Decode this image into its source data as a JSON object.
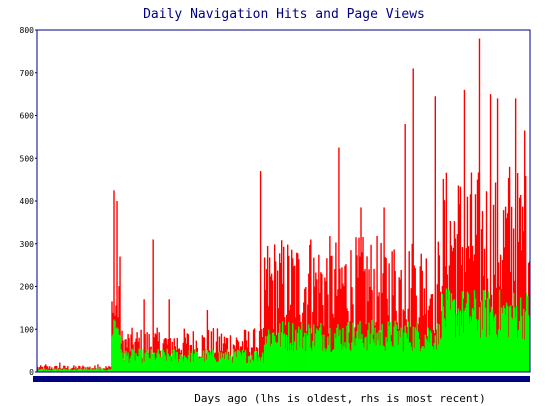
{
  "chart_data": {
    "type": "area",
    "title": "Daily Navigation Hits and Page Views",
    "xlabel": "Days ago (lhs is oldest, rhs is most recent)",
    "ylabel": "",
    "ylim": [
      0,
      800
    ],
    "yticks": [
      "0",
      "100",
      "200",
      "300",
      "400",
      "500",
      "600",
      "700",
      "800"
    ],
    "grid": false,
    "legend": "none",
    "day_count": 491,
    "series": [
      {
        "color": "#ff0000",
        "segments": [
          {
            "from_day": 0,
            "to_day": 73,
            "base": 10,
            "spikes": [
              [
                8,
                18
              ],
              [
                22,
                22
              ],
              [
                45,
                15
              ],
              [
                60,
                18
              ]
            ]
          },
          {
            "from_day": 74,
            "to_day": 82,
            "base": 130,
            "spikes": [
              [
                74,
                165
              ],
              [
                76,
                425
              ],
              [
                79,
                400
              ],
              [
                82,
                270
              ]
            ]
          },
          {
            "from_day": 83,
            "to_day": 225,
            "base": 65,
            "spikes": [
              [
                106,
                170
              ],
              [
                115,
                310
              ],
              [
                131,
                170
              ],
              [
                169,
                145
              ]
            ]
          },
          {
            "from_day": 226,
            "to_day": 400,
            "base": 200,
            "spikes": [
              [
                222,
                470
              ],
              [
                272,
                310
              ],
              [
                300,
                525
              ],
              [
                322,
                385
              ],
              [
                345,
                385
              ],
              [
                366,
                580
              ],
              [
                374,
                710
              ],
              [
                396,
                645
              ]
            ]
          },
          {
            "from_day": 401,
            "to_day": 490,
            "base": 300,
            "spikes": [
              [
                425,
                660
              ],
              [
                440,
                780
              ],
              [
                451,
                650
              ],
              [
                458,
                640
              ],
              [
                470,
                480
              ],
              [
                476,
                640
              ],
              [
                485,
                565
              ]
            ]
          }
        ]
      },
      {
        "color": "#00ff00",
        "segments": [
          {
            "from_day": 0,
            "to_day": 73,
            "base": 6
          },
          {
            "from_day": 74,
            "to_day": 82,
            "base": 110
          },
          {
            "from_day": 83,
            "to_day": 225,
            "base": 38
          },
          {
            "from_day": 226,
            "to_day": 400,
            "base": 85
          },
          {
            "from_day": 401,
            "to_day": 490,
            "base": 135
          }
        ]
      }
    ]
  },
  "colors": {
    "frame": "#000080",
    "title": "#000080",
    "background": "#ffffff"
  }
}
